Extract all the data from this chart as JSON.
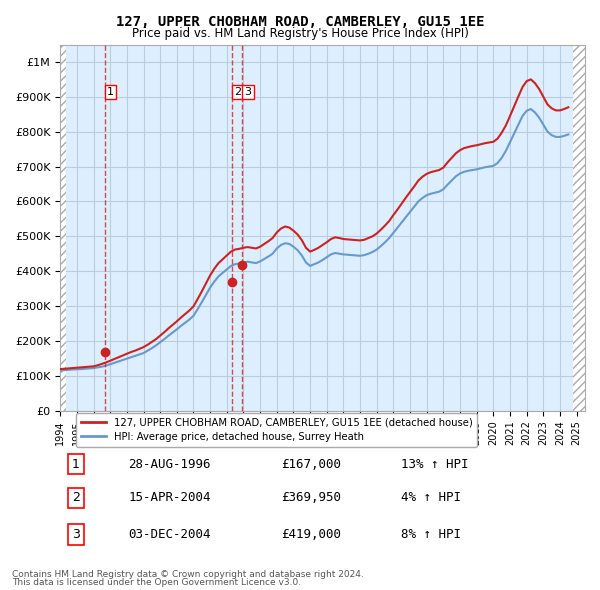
{
  "title": "127, UPPER CHOBHAM ROAD, CAMBERLEY, GU15 1EE",
  "subtitle": "Price paid vs. HM Land Registry's House Price Index (HPI)",
  "xlabel": "",
  "ylabel": "",
  "ylim": [
    0,
    1050000
  ],
  "yticks": [
    0,
    100000,
    200000,
    300000,
    400000,
    500000,
    600000,
    700000,
    800000,
    900000,
    1000000
  ],
  "ytick_labels": [
    "£0",
    "£100K",
    "£200K",
    "£300K",
    "£400K",
    "£500K",
    "£600K",
    "£700K",
    "£800K",
    "£900K",
    "£1M"
  ],
  "xlim_start": 1994.0,
  "xlim_end": 2025.5,
  "hpi_color": "#6699cc",
  "price_color": "#cc2222",
  "sale_marker_color": "#cc2222",
  "background_color": "#ddeeff",
  "hatch_color": "#cccccc",
  "grid_color": "#bbccdd",
  "sale_dates_year": [
    1996.66,
    2004.29,
    2004.92
  ],
  "sale_prices": [
    167000,
    369950,
    419000
  ],
  "sale_labels": [
    "1",
    "2",
    "3"
  ],
  "legend_line1": "127, UPPER CHOBHAM ROAD, CAMBERLEY, GU15 1EE (detached house)",
  "legend_line2": "HPI: Average price, detached house, Surrey Heath",
  "table_data": [
    [
      "1",
      "28-AUG-1996",
      "£167,000",
      "13% ↑ HPI"
    ],
    [
      "2",
      "15-APR-2004",
      "£369,950",
      "4% ↑ HPI"
    ],
    [
      "3",
      "03-DEC-2004",
      "£419,000",
      "8% ↑ HPI"
    ]
  ],
  "footnote1": "Contains HM Land Registry data © Crown copyright and database right 2024.",
  "footnote2": "This data is licensed under the Open Government Licence v3.0.",
  "hpi_data_years": [
    1994.0,
    1994.25,
    1994.5,
    1994.75,
    1995.0,
    1995.25,
    1995.5,
    1995.75,
    1996.0,
    1996.25,
    1996.5,
    1996.75,
    1997.0,
    1997.25,
    1997.5,
    1997.75,
    1998.0,
    1998.25,
    1998.5,
    1998.75,
    1999.0,
    1999.25,
    1999.5,
    1999.75,
    2000.0,
    2000.25,
    2000.5,
    2000.75,
    2001.0,
    2001.25,
    2001.5,
    2001.75,
    2002.0,
    2002.25,
    2002.5,
    2002.75,
    2003.0,
    2003.25,
    2003.5,
    2003.75,
    2004.0,
    2004.25,
    2004.5,
    2004.75,
    2005.0,
    2005.25,
    2005.5,
    2005.75,
    2006.0,
    2006.25,
    2006.5,
    2006.75,
    2007.0,
    2007.25,
    2007.5,
    2007.75,
    2008.0,
    2008.25,
    2008.5,
    2008.75,
    2009.0,
    2009.25,
    2009.5,
    2009.75,
    2010.0,
    2010.25,
    2010.5,
    2010.75,
    2011.0,
    2011.25,
    2011.5,
    2011.75,
    2012.0,
    2012.25,
    2012.5,
    2012.75,
    2013.0,
    2013.25,
    2013.5,
    2013.75,
    2014.0,
    2014.25,
    2014.5,
    2014.75,
    2015.0,
    2015.25,
    2015.5,
    2015.75,
    2016.0,
    2016.25,
    2016.5,
    2016.75,
    2017.0,
    2017.25,
    2017.5,
    2017.75,
    2018.0,
    2018.25,
    2018.5,
    2018.75,
    2019.0,
    2019.25,
    2019.5,
    2019.75,
    2020.0,
    2020.25,
    2020.5,
    2020.75,
    2021.0,
    2021.25,
    2021.5,
    2021.75,
    2022.0,
    2022.25,
    2022.5,
    2022.75,
    2023.0,
    2023.25,
    2023.5,
    2023.75,
    2024.0,
    2024.25,
    2024.5
  ],
  "hpi_values": [
    115000,
    116000,
    117000,
    118000,
    118500,
    119000,
    120000,
    121000,
    122000,
    124000,
    126000,
    129000,
    133000,
    137000,
    141000,
    145000,
    149000,
    153000,
    157000,
    161000,
    165000,
    172000,
    179000,
    187000,
    196000,
    205000,
    215000,
    224000,
    233000,
    243000,
    252000,
    261000,
    272000,
    291000,
    311000,
    332000,
    353000,
    370000,
    385000,
    395000,
    405000,
    415000,
    420000,
    422000,
    425000,
    427000,
    425000,
    423000,
    428000,
    435000,
    442000,
    450000,
    465000,
    475000,
    480000,
    478000,
    470000,
    460000,
    445000,
    425000,
    415000,
    420000,
    425000,
    432000,
    440000,
    448000,
    452000,
    450000,
    448000,
    447000,
    446000,
    445000,
    444000,
    446000,
    450000,
    455000,
    462000,
    472000,
    483000,
    495000,
    510000,
    525000,
    540000,
    555000,
    570000,
    585000,
    600000,
    610000,
    618000,
    622000,
    625000,
    628000,
    635000,
    648000,
    660000,
    672000,
    680000,
    685000,
    688000,
    690000,
    692000,
    695000,
    698000,
    700000,
    702000,
    710000,
    725000,
    745000,
    770000,
    795000,
    820000,
    845000,
    860000,
    865000,
    855000,
    840000,
    820000,
    800000,
    790000,
    785000,
    785000,
    788000,
    792000
  ],
  "price_data_years": [
    1994.0,
    1994.25,
    1994.5,
    1994.75,
    1995.0,
    1995.25,
    1995.5,
    1995.75,
    1996.0,
    1996.25,
    1996.5,
    1996.75,
    1997.0,
    1997.25,
    1997.5,
    1997.75,
    1998.0,
    1998.25,
    1998.5,
    1998.75,
    1999.0,
    1999.25,
    1999.5,
    1999.75,
    2000.0,
    2000.25,
    2000.5,
    2000.75,
    2001.0,
    2001.25,
    2001.5,
    2001.75,
    2002.0,
    2002.25,
    2002.5,
    2002.75,
    2003.0,
    2003.25,
    2003.5,
    2003.75,
    2004.0,
    2004.25,
    2004.5,
    2004.75,
    2005.0,
    2005.25,
    2005.5,
    2005.75,
    2006.0,
    2006.25,
    2006.5,
    2006.75,
    2007.0,
    2007.25,
    2007.5,
    2007.75,
    2008.0,
    2008.25,
    2008.5,
    2008.75,
    2009.0,
    2009.25,
    2009.5,
    2009.75,
    2010.0,
    2010.25,
    2010.5,
    2010.75,
    2011.0,
    2011.25,
    2011.5,
    2011.75,
    2012.0,
    2012.25,
    2012.5,
    2012.75,
    2013.0,
    2013.25,
    2013.5,
    2013.75,
    2014.0,
    2014.25,
    2014.5,
    2014.75,
    2015.0,
    2015.25,
    2015.5,
    2015.75,
    2016.0,
    2016.25,
    2016.5,
    2016.75,
    2017.0,
    2017.25,
    2017.5,
    2017.75,
    2018.0,
    2018.25,
    2018.5,
    2018.75,
    2019.0,
    2019.25,
    2019.5,
    2019.75,
    2020.0,
    2020.25,
    2020.5,
    2020.75,
    2021.0,
    2021.25,
    2021.5,
    2021.75,
    2022.0,
    2022.25,
    2022.5,
    2022.75,
    2023.0,
    2023.25,
    2023.5,
    2023.75,
    2024.0,
    2024.25,
    2024.5
  ],
  "price_indexed_values": [
    119000,
    120000,
    121000,
    122000,
    123000,
    124000,
    125000,
    126000,
    127000,
    130000,
    134000,
    138000,
    143000,
    148000,
    153000,
    158000,
    163000,
    168000,
    172000,
    177000,
    182000,
    189000,
    197000,
    205000,
    215000,
    225000,
    236000,
    246000,
    256000,
    267000,
    277000,
    287000,
    299000,
    320000,
    342000,
    365000,
    388000,
    407000,
    423000,
    434000,
    445000,
    456000,
    462000,
    464000,
    467000,
    469000,
    467000,
    465000,
    470000,
    478000,
    486000,
    495000,
    511000,
    522000,
    528000,
    525000,
    516000,
    505000,
    489000,
    467000,
    456000,
    461000,
    467000,
    475000,
    483000,
    492000,
    497000,
    495000,
    492000,
    491000,
    490000,
    489000,
    488000,
    490000,
    495000,
    500000,
    508000,
    519000,
    531000,
    544000,
    561000,
    577000,
    594000,
    611000,
    627000,
    643000,
    660000,
    671000,
    679000,
    684000,
    687000,
    690000,
    697000,
    712000,
    725000,
    738000,
    747000,
    753000,
    756000,
    759000,
    761000,
    764000,
    767000,
    769000,
    771000,
    780000,
    797000,
    818000,
    845000,
    873000,
    901000,
    928000,
    945000,
    950000,
    939000,
    922000,
    900000,
    878000,
    867000,
    861000,
    861000,
    865000,
    870000
  ]
}
